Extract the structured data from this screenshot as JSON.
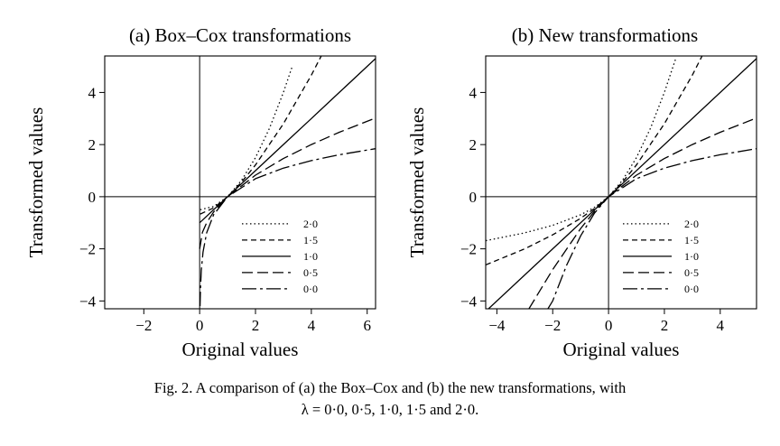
{
  "figure": {
    "caption_line1": "Fig. 2. A comparison of (a) the Box–Cox and (b) the new transformations, with",
    "caption_line2": "λ = 0·0, 0·5, 1·0, 1·5 and 2·0."
  },
  "chart_data": [
    {
      "type": "line",
      "title": "(a) Box–Cox transformations",
      "xlabel": "Original values",
      "ylabel": "Transformed values",
      "xlim": [
        -3.4,
        6.3
      ],
      "ylim": [
        -4.3,
        5.4
      ],
      "xticks": [
        -2,
        0,
        2,
        4,
        6
      ],
      "xtick_labels": [
        "−2",
        "0",
        "2",
        "4",
        "6"
      ],
      "yticks": [
        -4,
        -2,
        0,
        2,
        4
      ],
      "ytick_labels": [
        "−4",
        "−2",
        "0",
        "2",
        "4"
      ],
      "legend": {
        "position": "lower-right",
        "entries": [
          "2·0",
          "1·5",
          "1·0",
          "0·5",
          "0·0"
        ]
      },
      "series": [
        {
          "name": "2·0",
          "lambda": 2.0,
          "dash": "1.5,3",
          "x": [
            0.02,
            0.5,
            1.0,
            1.5,
            2.0,
            2.5,
            3.0,
            3.3
          ],
          "y": [
            -0.5,
            -0.375,
            0.0,
            0.625,
            1.5,
            2.625,
            4.0,
            4.945
          ]
        },
        {
          "name": "1·5",
          "lambda": 1.5,
          "dash": "6,4",
          "x": [
            0.02,
            0.5,
            1.0,
            1.5,
            2.0,
            3.0,
            4.0,
            4.6
          ],
          "y": [
            -0.665,
            -0.431,
            0.0,
            0.558,
            1.219,
            2.798,
            4.667,
            5.91
          ]
        },
        {
          "name": "1·0",
          "lambda": 1.0,
          "dash": "",
          "x": [
            0.0,
            1.0,
            2.0,
            3.0,
            4.0,
            5.0,
            6.3
          ],
          "y": [
            -1.0,
            0.0,
            1.0,
            2.0,
            3.0,
            4.0,
            5.3
          ]
        },
        {
          "name": "0·5",
          "lambda": 0.5,
          "dash": "12,5",
          "x": [
            0.0,
            0.1,
            0.25,
            0.5,
            1.0,
            2.0,
            3.0,
            4.0,
            5.0,
            6.3
          ],
          "y": [
            -2.0,
            -1.368,
            -1.0,
            -0.586,
            0.0,
            0.828,
            1.464,
            2.0,
            2.472,
            3.02
          ]
        },
        {
          "name": "0·0",
          "lambda": 0.0,
          "dash": "16,4,3,4",
          "x": [
            0.015,
            0.03,
            0.06,
            0.12,
            0.25,
            0.5,
            1.0,
            2.0,
            3.0,
            4.0,
            5.0,
            6.3
          ],
          "y": [
            -4.2,
            -3.507,
            -2.813,
            -2.12,
            -1.386,
            -0.693,
            0.0,
            0.693,
            1.099,
            1.386,
            1.609,
            1.841
          ]
        }
      ]
    },
    {
      "type": "line",
      "title": "(b) New transformations",
      "xlabel": "Original values",
      "ylabel": "Transformed values",
      "xlim": [
        -4.4,
        5.3
      ],
      "ylim": [
        -4.3,
        5.4
      ],
      "xticks": [
        -4,
        -2,
        0,
        2,
        4
      ],
      "xtick_labels": [
        "−4",
        "−2",
        "0",
        "2",
        "4"
      ],
      "yticks": [
        -4,
        -2,
        0,
        2,
        4
      ],
      "ytick_labels": [
        "−4",
        "−2",
        "0",
        "2",
        "4"
      ],
      "legend": {
        "position": "lower-right",
        "entries": [
          "2·0",
          "1·5",
          "1·0",
          "0·5",
          "0·0"
        ]
      },
      "series": [
        {
          "name": "2·0",
          "lambda": 2.0,
          "dash": "1.5,3",
          "x": [
            -4.4,
            -3.0,
            -2.0,
            -1.0,
            -0.5,
            0.0,
            0.5,
            1.0,
            1.5,
            2.0,
            2.4
          ],
          "y": [
            -1.688,
            -1.386,
            -1.099,
            -0.693,
            -0.405,
            0.0,
            0.625,
            1.5,
            2.625,
            4.0,
            5.28
          ]
        },
        {
          "name": "1·5",
          "lambda": 1.5,
          "dash": "6,4",
          "x": [
            -4.4,
            -3.0,
            -2.0,
            -1.0,
            -0.5,
            0.0,
            0.5,
            1.0,
            2.0,
            3.0,
            3.4
          ],
          "y": [
            -2.616,
            -2.0,
            -1.464,
            -0.828,
            -0.449,
            0.0,
            0.558,
            1.219,
            2.798,
            4.667,
            5.504
          ]
        },
        {
          "name": "1·0",
          "lambda": 1.0,
          "dash": "",
          "x": [
            -4.4,
            5.3
          ],
          "y": [
            -4.4,
            5.3
          ]
        },
        {
          "name": "0·5",
          "lambda": 0.5,
          "dash": "12,5",
          "x": [
            -2.85,
            -2.0,
            -1.0,
            -0.5,
            0.0,
            1.0,
            2.0,
            3.0,
            4.0,
            5.3
          ],
          "y": [
            -4.3,
            -2.798,
            -1.219,
            -0.558,
            0.0,
            0.828,
            1.464,
            2.0,
            2.472,
            3.02
          ]
        },
        {
          "name": "0·0",
          "lambda": 0.0,
          "dash": "16,4,3,4",
          "x": [
            -2.2,
            -2.0,
            -1.5,
            -1.0,
            -0.5,
            0.0,
            1.0,
            2.0,
            3.0,
            4.0,
            5.3
          ],
          "y": [
            -4.353,
            -4.0,
            -2.625,
            -1.5,
            -0.625,
            0.0,
            0.693,
            1.099,
            1.386,
            1.609,
            1.841
          ]
        }
      ]
    }
  ]
}
